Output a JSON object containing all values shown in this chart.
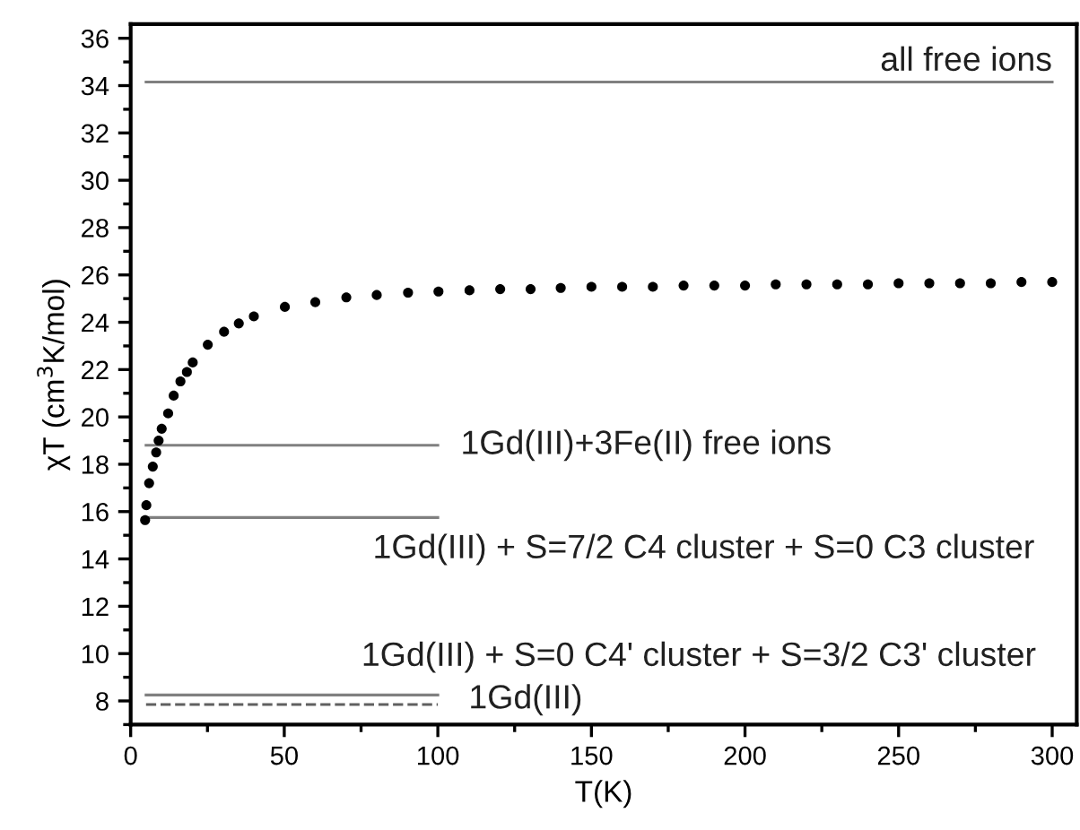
{
  "chart_data": {
    "type": "scatter",
    "xlabel": "T(K)",
    "ylabel": "χT (cm$^{3}$K/mol)",
    "xlim": [
      0,
      308
    ],
    "ylim": [
      7,
      36.6
    ],
    "xticks": [
      0,
      50,
      100,
      150,
      200,
      250,
      300
    ],
    "yticks": [
      8,
      10,
      12,
      14,
      16,
      18,
      20,
      22,
      24,
      26,
      28,
      30,
      32,
      34,
      36
    ],
    "grid": false,
    "legend": false,
    "marker": "circle",
    "series": [
      {
        "color": "#000000",
        "x": [
          4.7,
          5.1,
          6.0,
          7.2,
          8.3,
          9.1,
          10.1,
          12.2,
          14.0,
          16.2,
          18.3,
          20.2,
          25.1,
          30.4,
          35.2,
          40.1,
          50.2,
          60.1,
          70.2,
          80.1,
          90.3,
          100.2,
          110.3,
          120.3,
          130.2,
          140,
          150,
          160,
          170,
          180,
          190,
          200,
          210,
          220,
          230,
          240,
          250,
          260,
          270,
          280,
          290,
          300
        ],
        "values": [
          15.64,
          16.27,
          17.2,
          17.9,
          18.5,
          19.0,
          19.5,
          20.15,
          20.9,
          21.5,
          21.9,
          22.3,
          23.05,
          23.6,
          23.95,
          24.25,
          24.65,
          24.85,
          25.05,
          25.15,
          25.25,
          25.3,
          25.35,
          25.4,
          25.4,
          25.45,
          25.5,
          25.5,
          25.5,
          25.55,
          25.55,
          25.55,
          25.6,
          25.6,
          25.6,
          25.6,
          25.65,
          25.65,
          25.65,
          25.65,
          25.7,
          25.7
        ]
      },
      {
        "type": "line",
        "name": "all free ions",
        "color": "#808080",
        "line_style": "solid",
        "marker": "none",
        "x": [
          5,
          300
        ],
        "values": [
          34.15,
          34.15
        ]
      },
      {
        "type": "line",
        "name": "1Gd(III)+3Fe(II) free ions",
        "color": "#808080",
        "line_style": "solid",
        "marker": "none",
        "x": [
          5,
          100
        ],
        "values": [
          18.8,
          18.8
        ]
      },
      {
        "type": "line",
        "name": "1Gd(III) + S=7/2 C4 cluster + S=0 C3 cluster",
        "color": "#808080",
        "line_style": "solid",
        "marker": "none",
        "x": [
          5,
          100
        ],
        "values": [
          15.75,
          15.75
        ]
      },
      {
        "type": "line",
        "name": "1Gd(III) + S=0 C4' cluster + S=3/2 C3' cluster",
        "color": "#808080",
        "line_style": "solid",
        "marker": "none",
        "x": [
          5,
          100
        ],
        "values": [
          8.25,
          8.25
        ]
      },
      {
        "type": "line",
        "name": "1Gd(III)",
        "color": "#606060",
        "line_style": "dashed",
        "marker": "none",
        "x": [
          5,
          100
        ],
        "values": [
          7.85,
          7.85
        ]
      }
    ]
  }
}
